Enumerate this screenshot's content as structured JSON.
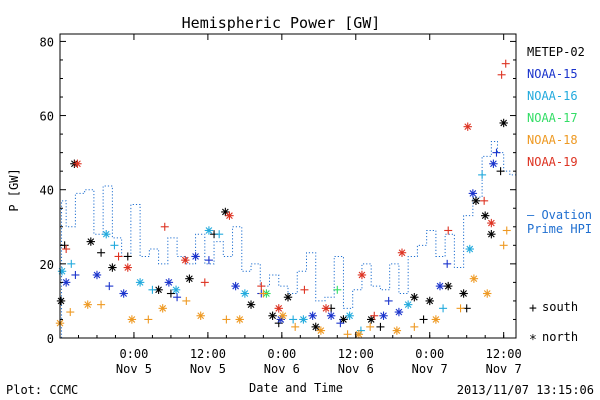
{
  "chart_data": {
    "type": "scatter",
    "title": "Hemispheric Power [GW]",
    "ylabel": "P [GW]",
    "xlabel": "Date and Time",
    "ylim": [
      0,
      82
    ],
    "yticks": [
      "0",
      "20",
      "40",
      "60",
      "80"
    ],
    "xlim": [
      "2013-11-04 12:00",
      "2013-11-07 14:00"
    ],
    "xticks": [
      {
        "x": "2013-11-05 00:00",
        "line1": "0:00",
        "line2": "Nov 5"
      },
      {
        "x": "2013-11-05 12:00",
        "line1": "12:00",
        "line2": "Nov 5"
      },
      {
        "x": "2013-11-06 00:00",
        "line1": "0:00",
        "line2": "Nov 6"
      },
      {
        "x": "2013-11-06 12:00",
        "line1": "12:00",
        "line2": "Nov 6"
      },
      {
        "x": "2013-11-07 00:00",
        "line1": "0:00",
        "line2": "Nov 7"
      },
      {
        "x": "2013-11-07 12:00",
        "line1": "12:00",
        "line2": "Nov 7"
      }
    ],
    "legend": [
      {
        "name": "METEP-02",
        "color": "#000000"
      },
      {
        "name": "NOAA-15",
        "color": "#1a33cc"
      },
      {
        "name": "NOAA-16",
        "color": "#22aadd"
      },
      {
        "name": "NOAA-17",
        "color": "#33dd66"
      },
      {
        "name": "NOAA-18",
        "color": "#ee9922"
      },
      {
        "name": "NOAA-19",
        "color": "#dd3322"
      }
    ],
    "legend_position": "right",
    "ovation_label": [
      "— Ovation",
      "Prime HPI"
    ],
    "ovation_color": "#1f6fd0",
    "symbol_legend": [
      {
        "symbol": "+",
        "label": "south"
      },
      {
        "symbol": "*",
        "label": "north"
      }
    ],
    "ovation": {
      "x": [
        "2013-11-04 12:15",
        "2013-11-04 13:00",
        "2013-11-04 14:30",
        "2013-11-04 16:00",
        "2013-11-04 17:30",
        "2013-11-04 19:00",
        "2013-11-04 20:30",
        "2013-11-04 22:00",
        "2013-11-04 23:30",
        "2013-11-05 01:00",
        "2013-11-05 02:30",
        "2013-11-05 04:00",
        "2013-11-05 05:30",
        "2013-11-05 07:00",
        "2013-11-05 08:30",
        "2013-11-05 10:00",
        "2013-11-05 11:30",
        "2013-11-05 13:00",
        "2013-11-05 14:30",
        "2013-11-05 16:00",
        "2013-11-05 17:30",
        "2013-11-05 19:00",
        "2013-11-05 20:30",
        "2013-11-05 22:00",
        "2013-11-05 23:30",
        "2013-11-06 01:00",
        "2013-11-06 02:30",
        "2013-11-06 04:00",
        "2013-11-06 05:30",
        "2013-11-06 07:00",
        "2013-11-06 08:30",
        "2013-11-06 10:00",
        "2013-11-06 11:30",
        "2013-11-06 13:00",
        "2013-11-06 14:30",
        "2013-11-06 16:00",
        "2013-11-06 17:30",
        "2013-11-06 19:00",
        "2013-11-06 20:30",
        "2013-11-06 22:00",
        "2013-11-06 23:30",
        "2013-11-07 01:00",
        "2013-11-07 02:30",
        "2013-11-07 04:00",
        "2013-11-07 05:30",
        "2013-11-07 07:00",
        "2013-11-07 08:30",
        "2013-11-07 10:00",
        "2013-11-07 11:00",
        "2013-11-07 12:00",
        "2013-11-07 13:00"
      ],
      "y": [
        37,
        30,
        39,
        40,
        28,
        41,
        27,
        22,
        36,
        22,
        24,
        20,
        27,
        22,
        20,
        28,
        20,
        26,
        22,
        30,
        18,
        20,
        14,
        17,
        14,
        12,
        18,
        23,
        10,
        11,
        22,
        8,
        13,
        20,
        14,
        13,
        20,
        12,
        22,
        25,
        29,
        22,
        28,
        19,
        33,
        38,
        49,
        53,
        50,
        45,
        44
      ]
    },
    "series": [
      {
        "name": "METEP-02",
        "color": "#000000",
        "north": [
          [
            "2013-11-04 12:10",
            10
          ],
          [
            "2013-11-04 14:20",
            47
          ],
          [
            "2013-11-04 17:00",
            26
          ],
          [
            "2013-11-04 20:30",
            19
          ],
          [
            "2013-11-05 04:00",
            13
          ],
          [
            "2013-11-05 09:00",
            16
          ],
          [
            "2013-11-05 14:50",
            34
          ],
          [
            "2013-11-05 19:00",
            9
          ],
          [
            "2013-11-05 22:30",
            6
          ],
          [
            "2013-11-06 01:00",
            11
          ],
          [
            "2013-11-06 05:30",
            3
          ],
          [
            "2013-11-06 10:00",
            5
          ],
          [
            "2013-11-06 14:30",
            5
          ],
          [
            "2013-11-06 21:30",
            11
          ],
          [
            "2013-11-07 00:00",
            10
          ],
          [
            "2013-11-07 03:00",
            14
          ],
          [
            "2013-11-07 05:30",
            12
          ],
          [
            "2013-11-07 07:30",
            37
          ],
          [
            "2013-11-07 09:00",
            33
          ],
          [
            "2013-11-07 10:00",
            28
          ],
          [
            "2013-11-07 12:00",
            58
          ]
        ],
        "south": [
          [
            "2013-11-04 12:45",
            25
          ],
          [
            "2013-11-04 18:40",
            23
          ],
          [
            "2013-11-04 23:00",
            22
          ],
          [
            "2013-11-05 06:00",
            12
          ],
          [
            "2013-11-05 13:00",
            28
          ],
          [
            "2013-11-05 23:30",
            4
          ],
          [
            "2013-11-06 08:00",
            8
          ],
          [
            "2013-11-06 16:00",
            3
          ],
          [
            "2013-11-06 23:00",
            5
          ],
          [
            "2013-11-07 06:00",
            8
          ],
          [
            "2013-11-07 11:30",
            45
          ]
        ]
      },
      {
        "name": "NOAA-15",
        "color": "#1a33cc",
        "north": [
          [
            "2013-11-04 13:00",
            15
          ],
          [
            "2013-11-04 18:00",
            17
          ],
          [
            "2013-11-04 22:20",
            12
          ],
          [
            "2013-11-05 05:40",
            15
          ],
          [
            "2013-11-05 10:00",
            22
          ],
          [
            "2013-11-05 16:30",
            14
          ],
          [
            "2013-11-05 23:50",
            5
          ],
          [
            "2013-11-06 05:00",
            6
          ],
          [
            "2013-11-06 08:00",
            6
          ],
          [
            "2013-11-06 16:30",
            6
          ],
          [
            "2013-11-06 19:00",
            7
          ],
          [
            "2013-11-07 01:40",
            14
          ],
          [
            "2013-11-07 07:00",
            39
          ],
          [
            "2013-11-07 10:20",
            47
          ]
        ],
        "south": [
          [
            "2013-11-04 14:30",
            17
          ],
          [
            "2013-11-04 20:00",
            14
          ],
          [
            "2013-11-05 07:00",
            11
          ],
          [
            "2013-11-05 12:10",
            21
          ],
          [
            "2013-11-05 20:40",
            12
          ],
          [
            "2013-11-06 09:30",
            4
          ],
          [
            "2013-11-06 17:20",
            10
          ],
          [
            "2013-11-07 02:50",
            20
          ],
          [
            "2013-11-07 10:50",
            50
          ]
        ]
      },
      {
        "name": "NOAA-16",
        "color": "#22aadd",
        "north": [
          [
            "2013-11-04 12:20",
            18
          ],
          [
            "2013-11-04 19:30",
            28
          ],
          [
            "2013-11-05 01:00",
            15
          ],
          [
            "2013-11-05 06:50",
            13
          ],
          [
            "2013-11-05 12:10",
            29
          ],
          [
            "2013-11-05 18:00",
            12
          ],
          [
            "2013-11-06 03:30",
            5
          ],
          [
            "2013-11-06 11:00",
            6
          ],
          [
            "2013-11-06 20:30",
            9
          ],
          [
            "2013-11-07 06:30",
            24
          ]
        ],
        "south": [
          [
            "2013-11-04 13:50",
            20
          ],
          [
            "2013-11-04 20:50",
            25
          ],
          [
            "2013-11-05 03:00",
            13
          ],
          [
            "2013-11-05 13:50",
            28
          ],
          [
            "2013-11-06 01:50",
            5
          ],
          [
            "2013-11-06 12:50",
            2
          ],
          [
            "2013-11-07 02:10",
            8
          ],
          [
            "2013-11-07 08:30",
            44
          ]
        ]
      },
      {
        "name": "NOAA-17",
        "color": "#33dd66",
        "north": [
          [
            "2013-11-05 21:30",
            12
          ]
        ],
        "south": [
          [
            "2013-11-06 09:00",
            13
          ]
        ]
      },
      {
        "name": "NOAA-18",
        "color": "#ee9922",
        "north": [
          [
            "2013-11-04 12:00",
            4
          ],
          [
            "2013-11-04 16:30",
            9
          ],
          [
            "2013-11-04 23:40",
            5
          ],
          [
            "2013-11-05 04:40",
            8
          ],
          [
            "2013-11-05 10:50",
            6
          ],
          [
            "2013-11-05 17:10",
            5
          ],
          [
            "2013-11-06 00:10",
            6
          ],
          [
            "2013-11-06 06:20",
            2
          ],
          [
            "2013-11-06 12:30",
            1
          ],
          [
            "2013-11-06 18:40",
            2
          ],
          [
            "2013-11-07 01:00",
            5
          ],
          [
            "2013-11-07 07:10",
            16
          ],
          [
            "2013-11-07 09:20",
            12
          ]
        ],
        "south": [
          [
            "2013-11-04 13:40",
            7
          ],
          [
            "2013-11-04 18:40",
            9
          ],
          [
            "2013-11-05 02:20",
            5
          ],
          [
            "2013-11-05 08:30",
            10
          ],
          [
            "2013-11-05 15:00",
            5
          ],
          [
            "2013-11-05 21:00",
            12
          ],
          [
            "2013-11-06 02:10",
            3
          ],
          [
            "2013-11-06 10:40",
            1
          ],
          [
            "2013-11-06 14:20",
            3
          ],
          [
            "2013-11-06 21:30",
            3
          ],
          [
            "2013-11-07 05:00",
            8
          ],
          [
            "2013-11-07 12:00",
            25
          ],
          [
            "2013-11-07 12:30",
            29
          ]
        ]
      },
      {
        "name": "NOAA-19",
        "color": "#dd3322",
        "north": [
          [
            "2013-11-04 14:50",
            47
          ],
          [
            "2013-11-04 23:00",
            19
          ],
          [
            "2013-11-05 08:20",
            21
          ],
          [
            "2013-11-05 15:30",
            33
          ],
          [
            "2013-11-05 23:30",
            8
          ],
          [
            "2013-11-06 07:10",
            8
          ],
          [
            "2013-11-06 13:00",
            17
          ],
          [
            "2013-11-06 19:30",
            23
          ],
          [
            "2013-11-07 06:10",
            57
          ],
          [
            "2013-11-07 10:00",
            31
          ]
        ],
        "south": [
          [
            "2013-11-04 13:00",
            24
          ],
          [
            "2013-11-04 21:30",
            22
          ],
          [
            "2013-11-05 05:00",
            30
          ],
          [
            "2013-11-05 11:30",
            15
          ],
          [
            "2013-11-05 20:40",
            14
          ],
          [
            "2013-11-06 03:40",
            13
          ],
          [
            "2013-11-06 15:00",
            6
          ],
          [
            "2013-11-07 03:00",
            29
          ],
          [
            "2013-11-07 08:50",
            37
          ],
          [
            "2013-11-07 11:40",
            71
          ],
          [
            "2013-11-07 12:20",
            74
          ]
        ]
      }
    ]
  },
  "footer": {
    "left": "Plot: CCMC",
    "right": "2013/11/07 13:15:06"
  }
}
